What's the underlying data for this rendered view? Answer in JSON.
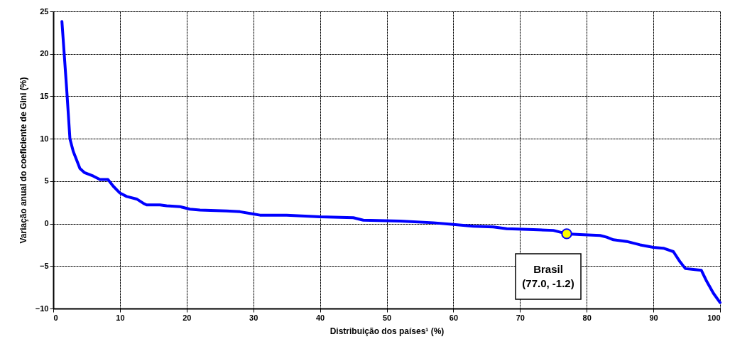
{
  "chart_data": {
    "type": "line",
    "xlabel": "Distribuição dos países¹ (%)",
    "ylabel": "Variação anual do coeficiente de Gini (%)",
    "xlim": [
      0,
      100
    ],
    "xticks": [
      0,
      10,
      20,
      30,
      40,
      50,
      60,
      70,
      80,
      90,
      100
    ],
    "ylim": [
      -10,
      25
    ],
    "yticks": [
      -10,
      -5,
      0,
      5,
      10,
      15,
      20,
      25
    ],
    "grid": true,
    "line_style": "solid",
    "series": [
      {
        "color": "#0000ff",
        "x": [
          1.3,
          2.0,
          2.5,
          3.0,
          4.0,
          4.7,
          6.0,
          7.0,
          8.2,
          9.0,
          10.0,
          11.0,
          12.5,
          13.5,
          14.0,
          16.0,
          17.0,
          19.0,
          20.5,
          22.0,
          26.0,
          28.0,
          29.5,
          31.0,
          35.0,
          40.0,
          45.0,
          46.5,
          52.0,
          57.0,
          60.0,
          63.0,
          66.0,
          68.0,
          72.0,
          75.0,
          77.0,
          79.0,
          82.0,
          83.0,
          84.0,
          86.0,
          88.0,
          90.0,
          91.5,
          93.0,
          94.0,
          94.8,
          96.0,
          97.2,
          98.0,
          99.0,
          100.0
        ],
        "values": [
          23.8,
          16.0,
          10.0,
          8.5,
          6.5,
          6.0,
          5.6,
          5.2,
          5.2,
          4.4,
          3.6,
          3.2,
          2.9,
          2.4,
          2.2,
          2.2,
          2.1,
          2.0,
          1.7,
          1.6,
          1.5,
          1.4,
          1.2,
          1.0,
          1.0,
          0.8,
          0.7,
          0.4,
          0.3,
          0.1,
          -0.1,
          -0.3,
          -0.4,
          -0.6,
          -0.7,
          -0.8,
          -1.2,
          -1.3,
          -1.4,
          -1.6,
          -1.9,
          -2.1,
          -2.5,
          -2.8,
          -2.9,
          -3.3,
          -4.5,
          -5.3,
          -5.4,
          -5.5,
          -6.8,
          -8.2,
          -9.3
        ]
      },
      {
        "type": "scatter",
        "marker": "circle",
        "color": "#ffff00",
        "x": [
          77.0
        ],
        "values": [
          -1.2
        ]
      }
    ],
    "annotations": [
      {
        "text": "Brasil\n(77.0, -1.2)",
        "x": 77.0,
        "y": -1.2
      }
    ]
  }
}
